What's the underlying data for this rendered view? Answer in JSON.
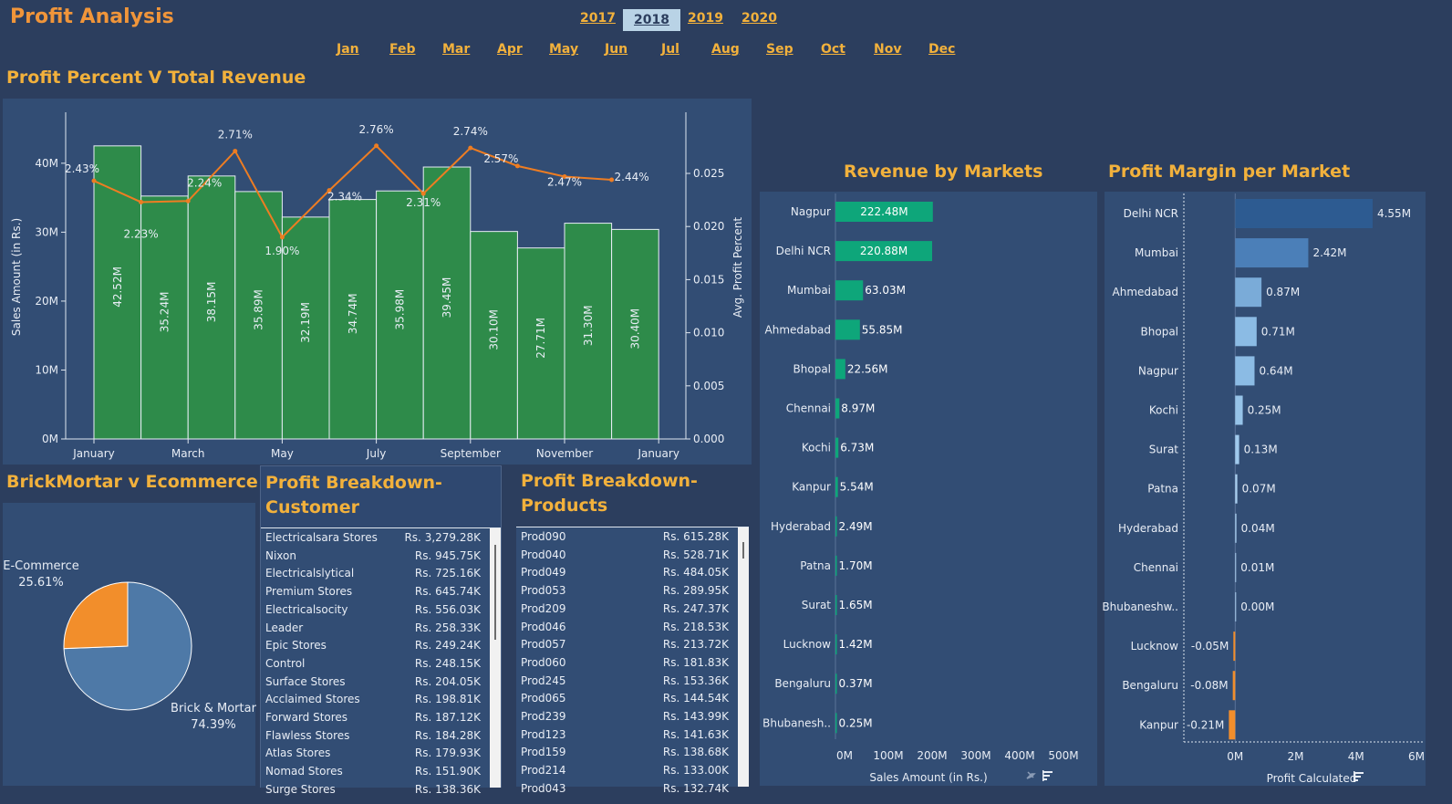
{
  "header": {
    "title": "Profit Analysis"
  },
  "years": [
    {
      "label": "2017",
      "active": false
    },
    {
      "label": "2018",
      "active": true
    },
    {
      "label": "2019",
      "active": false
    },
    {
      "label": "2020",
      "active": false
    }
  ],
  "months": [
    "Jan",
    "Feb",
    "Mar",
    "Apr",
    "May",
    "Jun",
    "Jul",
    "Aug",
    "Sep",
    "Oct",
    "Nov",
    "Dec"
  ],
  "combo": {
    "title": "Profit Percent V Total Revenue",
    "chart_data": {
      "type": "bar",
      "x_tick_labels": [
        "January",
        "March",
        "May",
        "July",
        "September",
        "November",
        "January"
      ],
      "bar_labels": [
        "42.52M",
        "35.24M",
        "38.15M",
        "35.89M",
        "32.19M",
        "34.74M",
        "35.98M",
        "39.45M",
        "30.10M",
        "27.71M",
        "31.30M",
        "30.40M"
      ],
      "values": [
        42.52,
        35.24,
        38.15,
        35.89,
        32.19,
        34.74,
        35.98,
        39.45,
        30.1,
        27.71,
        31.3,
        30.4
      ],
      "line_values": [
        0.0243,
        0.0223,
        0.0224,
        0.0271,
        0.019,
        0.0234,
        0.0276,
        0.0231,
        0.0274,
        0.0257,
        0.0247,
        0.0244
      ],
      "line_labels": [
        "2.43%",
        "2.23%",
        "2.24%",
        "2.71%",
        "1.90%",
        "2.34%",
        "2.76%",
        "2.31%",
        "2.74%",
        "2.57%",
        "2.47%",
        "2.44%"
      ],
      "ylabel": "Sales Amount (in Rs.)",
      "y2label": "Avg. Profit Percent",
      "y_ticks": [
        "0M",
        "10M",
        "20M",
        "30M",
        "40M"
      ],
      "y2_ticks": [
        "0.000",
        "0.005",
        "0.010",
        "0.015",
        "0.020",
        "0.025"
      ],
      "ylim": [
        0,
        47
      ],
      "y2lim": [
        0,
        0.0305
      ],
      "bar_color": "#2e8b4a",
      "line_color": "#ee7d22"
    }
  },
  "pie": {
    "title": "BrickMortar v Ecommerce",
    "chart_data": {
      "type": "pie",
      "slices": [
        {
          "name": "E-Commerce",
          "pct_label": "25.61%",
          "value": 25.61,
          "color": "#f28e2b"
        },
        {
          "name": "Brick & Mortar",
          "pct_label": "74.39%",
          "value": 74.39,
          "color": "#4e79a7"
        }
      ]
    }
  },
  "customers": {
    "title_line1": "Profit Breakdown-",
    "title_line2": "Customer",
    "rows": [
      {
        "name": "Electricalsara Stores",
        "value": "Rs. 3,279.28K"
      },
      {
        "name": "Nixon",
        "value": "Rs. 945.75K"
      },
      {
        "name": "Electricalslytical",
        "value": "Rs. 725.16K"
      },
      {
        "name": "Premium Stores",
        "value": "Rs. 645.74K"
      },
      {
        "name": "Electricalsocity",
        "value": "Rs. 556.03K"
      },
      {
        "name": "Leader",
        "value": "Rs. 258.33K"
      },
      {
        "name": "Epic Stores",
        "value": "Rs. 249.24K"
      },
      {
        "name": "Control",
        "value": "Rs. 248.15K"
      },
      {
        "name": "Surface Stores",
        "value": "Rs. 204.05K"
      },
      {
        "name": "Acclaimed Stores",
        "value": "Rs. 198.81K"
      },
      {
        "name": "Forward Stores",
        "value": "Rs. 187.12K"
      },
      {
        "name": "Flawless Stores",
        "value": "Rs. 184.28K"
      },
      {
        "name": "Atlas Stores",
        "value": "Rs. 179.93K"
      },
      {
        "name": "Nomad Stores",
        "value": "Rs. 151.90K"
      },
      {
        "name": "Surge Stores",
        "value": "Rs. 138.36K"
      }
    ]
  },
  "products": {
    "title_line1": "Profit Breakdown-",
    "title_line2": "Products",
    "rows": [
      {
        "name": "Prod090",
        "value": "Rs. 615.28K"
      },
      {
        "name": "Prod040",
        "value": "Rs. 528.71K"
      },
      {
        "name": "Prod049",
        "value": "Rs. 484.05K"
      },
      {
        "name": "Prod053",
        "value": "Rs. 289.95K"
      },
      {
        "name": "Prod209",
        "value": "Rs. 247.37K"
      },
      {
        "name": "Prod046",
        "value": "Rs. 218.53K"
      },
      {
        "name": "Prod057",
        "value": "Rs. 213.72K"
      },
      {
        "name": "Prod060",
        "value": "Rs. 181.83K"
      },
      {
        "name": "Prod245",
        "value": "Rs. 153.36K"
      },
      {
        "name": "Prod065",
        "value": "Rs. 144.54K"
      },
      {
        "name": "Prod239",
        "value": "Rs. 143.99K"
      },
      {
        "name": "Prod123",
        "value": "Rs. 141.63K"
      },
      {
        "name": "Prod159",
        "value": "Rs. 138.68K"
      },
      {
        "name": "Prod214",
        "value": "Rs. 133.00K"
      },
      {
        "name": "Prod043",
        "value": "Rs. 132.74K"
      }
    ]
  },
  "revenue": {
    "title": "Revenue by Markets",
    "chart_data": {
      "type": "bar",
      "orientation": "horizontal",
      "categories": [
        "Nagpur",
        "Delhi NCR",
        "Mumbai",
        "Ahmedabad",
        "Bhopal",
        "Chennai",
        "Kochi",
        "Kanpur",
        "Hyderabad",
        "Patna",
        "Surat",
        "Lucknow",
        "Bengaluru",
        "Bhubanesh.."
      ],
      "values": [
        222.48,
        220.88,
        63.03,
        55.85,
        22.56,
        8.97,
        6.73,
        5.54,
        2.49,
        1.7,
        1.65,
        1.42,
        0.37,
        0.25
      ],
      "labels": [
        "222.48M",
        "220.88M",
        "63.03M",
        "55.85M",
        "22.56M",
        "8.97M",
        "6.73M",
        "5.54M",
        "2.49M",
        "1.70M",
        "1.65M",
        "1.42M",
        "0.37M",
        "0.25M"
      ],
      "x_ticks": [
        "0M",
        "100M",
        "200M",
        "300M",
        "400M",
        "500M"
      ],
      "xlim": [
        0,
        500
      ],
      "xlabel": "Sales Amount (in Rs.)",
      "bar_color": "#0ea67a"
    }
  },
  "margin": {
    "title": "Profit Margin per Market",
    "chart_data": {
      "type": "bar",
      "orientation": "horizontal",
      "categories": [
        "Delhi NCR",
        "Mumbai",
        "Ahmedabad",
        "Bhopal",
        "Nagpur",
        "Kochi",
        "Surat",
        "Patna",
        "Hyderabad",
        "Chennai",
        "Bhubaneshw..",
        "Lucknow",
        "Bengaluru",
        "Kanpur"
      ],
      "values": [
        4.55,
        2.42,
        0.87,
        0.71,
        0.64,
        0.25,
        0.13,
        0.07,
        0.04,
        0.01,
        0.0,
        -0.05,
        -0.08,
        -0.21
      ],
      "labels": [
        "4.55M",
        "2.42M",
        "0.87M",
        "0.71M",
        "0.64M",
        "0.25M",
        "0.13M",
        "0.07M",
        "0.04M",
        "0.01M",
        "0.00M",
        "-0.05M",
        "-0.08M",
        "-0.21M"
      ],
      "x_ticks": [
        "0M",
        "2M",
        "4M",
        "6M"
      ],
      "xlim": [
        -1.7,
        6
      ],
      "xlabel": "Profit Calculated",
      "positive_colors": [
        "#2d5b91",
        "#4b7fb8",
        "#7aabd8",
        "#8bbbe4",
        "#8bbbe4",
        "#96c3e8",
        "#a0c9ec",
        "#a8cdee",
        "#a8cdee",
        "#a8cdee"
      ],
      "negative_color": "#f28e2b"
    }
  }
}
